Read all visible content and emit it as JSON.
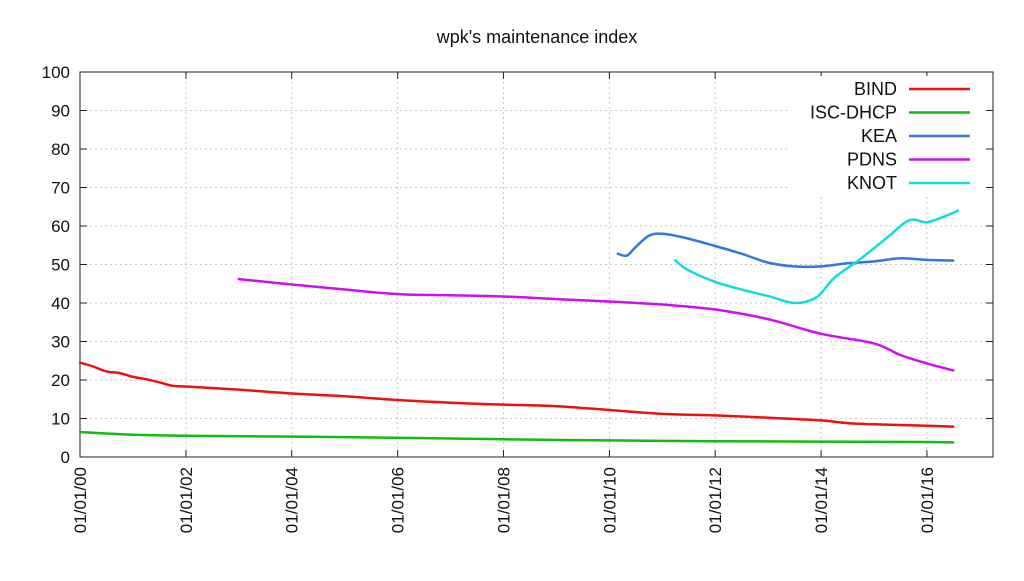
{
  "chart_data": {
    "type": "line",
    "title": "wpk's maintenance index",
    "xlabel": "",
    "ylabel": "",
    "ylim": [
      0,
      100
    ],
    "yticks": [
      "0",
      "10",
      "20",
      "30",
      "40",
      "50",
      "60",
      "70",
      "80",
      "90",
      "100"
    ],
    "xlim": [
      "2000-01-01",
      "2017-04-01"
    ],
    "xticks": [
      {
        "date": "2000-01-01",
        "label": "01/01/00"
      },
      {
        "date": "2002-01-01",
        "label": "01/01/02"
      },
      {
        "date": "2004-01-01",
        "label": "01/01/04"
      },
      {
        "date": "2006-01-01",
        "label": "01/01/06"
      },
      {
        "date": "2008-01-01",
        "label": "01/01/08"
      },
      {
        "date": "2010-01-01",
        "label": "01/01/10"
      },
      {
        "date": "2012-01-01",
        "label": "01/01/12"
      },
      {
        "date": "2014-01-01",
        "label": "01/01/14"
      },
      {
        "date": "2016-01-01",
        "label": "01/01/16"
      }
    ],
    "grid": true,
    "legend_position": "top-right",
    "series": [
      {
        "name": "BIND",
        "color": "#ee1111",
        "points": [
          [
            "2000-01-01",
            24.5
          ],
          [
            "2000-04-01",
            23.5
          ],
          [
            "2000-07-01",
            22.2
          ],
          [
            "2000-10-01",
            21.8
          ],
          [
            "2001-01-01",
            20.8
          ],
          [
            "2001-04-01",
            20.2
          ],
          [
            "2001-07-01",
            19.4
          ],
          [
            "2001-10-01",
            18.5
          ],
          [
            "2002-01-01",
            18.3
          ],
          [
            "2003-01-01",
            17.5
          ],
          [
            "2004-01-01",
            16.5
          ],
          [
            "2005-01-01",
            15.8
          ],
          [
            "2006-01-01",
            14.8
          ],
          [
            "2007-01-01",
            14.1
          ],
          [
            "2008-01-01",
            13.6
          ],
          [
            "2009-01-01",
            13.2
          ],
          [
            "2010-01-01",
            12.2
          ],
          [
            "2011-01-01",
            11.2
          ],
          [
            "2012-01-01",
            10.8
          ],
          [
            "2013-01-01",
            10.2
          ],
          [
            "2014-01-01",
            9.5
          ],
          [
            "2014-07-01",
            8.8
          ],
          [
            "2015-01-01",
            8.5
          ],
          [
            "2016-01-01",
            8.1
          ],
          [
            "2016-07-01",
            7.9
          ]
        ]
      },
      {
        "name": "ISC-DHCP",
        "color": "#11bb11",
        "points": [
          [
            "2000-01-01",
            6.5
          ],
          [
            "2000-07-01",
            6.1
          ],
          [
            "2001-01-01",
            5.8
          ],
          [
            "2002-01-01",
            5.5
          ],
          [
            "2004-01-01",
            5.3
          ],
          [
            "2006-01-01",
            5.0
          ],
          [
            "2008-01-01",
            4.6
          ],
          [
            "2010-01-01",
            4.3
          ],
          [
            "2012-01-01",
            4.1
          ],
          [
            "2014-01-01",
            4.0
          ],
          [
            "2016-01-01",
            3.9
          ],
          [
            "2016-07-01",
            3.8
          ]
        ]
      },
      {
        "name": "KEA",
        "color": "#3377dd",
        "points": [
          [
            "2010-03-01",
            52.8
          ],
          [
            "2010-05-01",
            52.3
          ],
          [
            "2010-07-01",
            54.5
          ],
          [
            "2010-10-01",
            57.5
          ],
          [
            "2011-01-01",
            58.0
          ],
          [
            "2011-06-01",
            57.0
          ],
          [
            "2012-01-01",
            54.8
          ],
          [
            "2012-07-01",
            52.8
          ],
          [
            "2013-01-01",
            50.5
          ],
          [
            "2013-07-01",
            49.5
          ],
          [
            "2014-01-01",
            49.5
          ],
          [
            "2014-07-01",
            50.3
          ],
          [
            "2015-01-01",
            50.8
          ],
          [
            "2015-07-01",
            51.6
          ],
          [
            "2016-01-01",
            51.2
          ],
          [
            "2016-07-01",
            51.0
          ]
        ]
      },
      {
        "name": "PDNS",
        "color": "#cc11ee",
        "points": [
          [
            "2003-01-01",
            46.2
          ],
          [
            "2004-01-01",
            44.8
          ],
          [
            "2005-01-01",
            43.5
          ],
          [
            "2006-01-01",
            42.3
          ],
          [
            "2007-01-01",
            42.0
          ],
          [
            "2008-01-01",
            41.7
          ],
          [
            "2009-01-01",
            41.0
          ],
          [
            "2010-01-01",
            40.4
          ],
          [
            "2011-01-01",
            39.6
          ],
          [
            "2012-01-01",
            38.3
          ],
          [
            "2013-01-01",
            35.8
          ],
          [
            "2014-01-01",
            32.0
          ],
          [
            "2015-01-01",
            29.5
          ],
          [
            "2015-07-01",
            26.5
          ],
          [
            "2016-01-01",
            24.3
          ],
          [
            "2016-07-01",
            22.5
          ]
        ]
      },
      {
        "name": "KNOT",
        "color": "#11dddd",
        "points": [
          [
            "2011-04-01",
            51.0
          ],
          [
            "2011-07-01",
            48.5
          ],
          [
            "2012-01-01",
            45.5
          ],
          [
            "2012-07-01",
            43.5
          ],
          [
            "2013-01-01",
            41.8
          ],
          [
            "2013-07-01",
            40.0
          ],
          [
            "2013-12-01",
            41.5
          ],
          [
            "2014-04-01",
            46.5
          ],
          [
            "2014-10-01",
            51.5
          ],
          [
            "2015-04-01",
            57.0
          ],
          [
            "2015-09-01",
            61.5
          ],
          [
            "2016-01-01",
            61.0
          ],
          [
            "2016-05-01",
            62.5
          ],
          [
            "2016-08-01",
            64.0
          ]
        ]
      }
    ]
  }
}
